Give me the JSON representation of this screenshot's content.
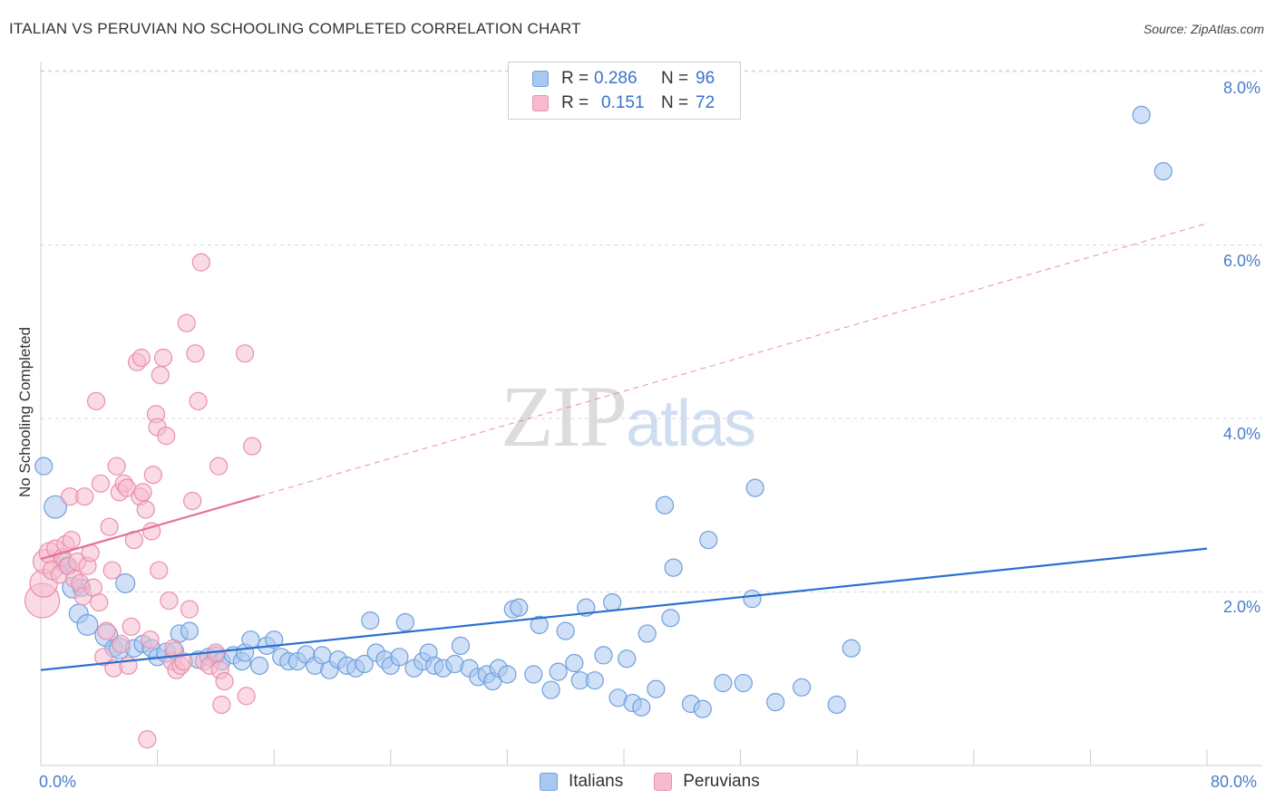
{
  "title": "ITALIAN VS PERUVIAN NO SCHOOLING COMPLETED CORRELATION CHART",
  "source": "Source: ZipAtlas.com",
  "watermark": {
    "zip": "ZIP",
    "atlas": "atlas"
  },
  "legend_top": {
    "italians": {
      "r_key": "R =",
      "r_val": "0.286",
      "n_key": "N =",
      "n_val": "96"
    },
    "peruvians": {
      "r_key": "R =",
      "r_val": "0.151",
      "n_key": "N =",
      "n_val": "72"
    }
  },
  "legend_bottom": {
    "italians": "Italians",
    "peruvians": "Peruvians"
  },
  "colors": {
    "italians_fill": "#a9c8f0",
    "italians_stroke": "#6e9fdc",
    "italians_line": "#2a6fcf",
    "peruvians_fill": "#f6bccd",
    "peruvians_stroke": "#ea8fac",
    "peruvians_line": "#e5709a",
    "grid": "#d9d9d9",
    "tick_text": "#4a7cc9"
  },
  "chart_data": {
    "type": "scatter",
    "title": "ITALIAN VS PERUVIAN NO SCHOOLING COMPLETED CORRELATION CHART",
    "xlabel": "",
    "ylabel": "No Schooling Completed",
    "xlim": [
      0,
      80
    ],
    "ylim": [
      0,
      8.0
    ],
    "x_tick_labels": [
      "0.0%",
      "80.0%"
    ],
    "y_ticks": [
      2.0,
      4.0,
      6.0,
      8.0
    ],
    "y_tick_labels": [
      "2.0%",
      "4.0%",
      "6.0%",
      "8.0%"
    ],
    "grid": "horizontal dashed",
    "legend_position": "top-center",
    "series": [
      {
        "name": "Italians",
        "r": 0.286,
        "n": 96,
        "trend": {
          "x": [
            0,
            80
          ],
          "y": [
            1.1,
            2.5
          ],
          "style": "solid"
        },
        "points": [
          [
            0.2,
            3.45,
            1.0
          ],
          [
            1.0,
            2.98,
            1.3
          ],
          [
            1.5,
            2.35,
            1.1
          ],
          [
            1.8,
            2.3,
            1.0
          ],
          [
            2.2,
            2.05,
            1.2
          ],
          [
            2.8,
            2.05,
            1.0
          ],
          [
            2.6,
            1.75,
            1.1
          ],
          [
            3.2,
            1.62,
            1.2
          ],
          [
            4.5,
            1.5,
            1.3
          ],
          [
            5.0,
            1.35,
            1.0
          ],
          [
            5.4,
            1.35,
            1.2
          ],
          [
            5.8,
            2.1,
            1.1
          ],
          [
            6.4,
            1.35,
            1.0
          ],
          [
            7.0,
            1.4,
            1.0
          ],
          [
            7.6,
            1.35,
            1.0
          ],
          [
            8.0,
            1.25,
            1.0
          ],
          [
            8.6,
            1.3,
            1.1
          ],
          [
            9.2,
            1.32,
            1.0
          ],
          [
            9.5,
            1.52,
            1.0
          ],
          [
            10.2,
            1.55,
            1.0
          ],
          [
            10.8,
            1.22,
            1.0
          ],
          [
            11.5,
            1.25,
            1.0
          ],
          [
            12.0,
            1.27,
            1.0
          ],
          [
            12.4,
            1.2,
            1.0
          ],
          [
            13.2,
            1.27,
            1.0
          ],
          [
            13.8,
            1.2,
            1.0
          ],
          [
            14.0,
            1.3,
            1.0
          ],
          [
            14.4,
            1.45,
            1.0
          ],
          [
            15.0,
            1.15,
            1.0
          ],
          [
            15.5,
            1.38,
            1.0
          ],
          [
            16.0,
            1.45,
            1.0
          ],
          [
            16.5,
            1.25,
            1.0
          ],
          [
            17.0,
            1.2,
            1.0
          ],
          [
            17.6,
            1.2,
            1.0
          ],
          [
            18.2,
            1.28,
            1.0
          ],
          [
            18.8,
            1.15,
            1.0
          ],
          [
            19.3,
            1.27,
            1.0
          ],
          [
            19.8,
            1.1,
            1.0
          ],
          [
            20.4,
            1.22,
            1.0
          ],
          [
            21.0,
            1.15,
            1.0
          ],
          [
            21.6,
            1.12,
            1.0
          ],
          [
            22.2,
            1.17,
            1.0
          ],
          [
            22.6,
            1.67,
            1.0
          ],
          [
            23.0,
            1.3,
            1.0
          ],
          [
            23.6,
            1.22,
            1.0
          ],
          [
            24.0,
            1.15,
            1.0
          ],
          [
            24.6,
            1.25,
            1.0
          ],
          [
            25.0,
            1.65,
            1.0
          ],
          [
            25.6,
            1.12,
            1.0
          ],
          [
            26.2,
            1.2,
            1.0
          ],
          [
            26.6,
            1.3,
            1.0
          ],
          [
            27.0,
            1.15,
            1.0
          ],
          [
            27.6,
            1.12,
            1.0
          ],
          [
            28.4,
            1.17,
            1.0
          ],
          [
            28.8,
            1.38,
            1.0
          ],
          [
            29.4,
            1.12,
            1.0
          ],
          [
            30.0,
            1.02,
            1.0
          ],
          [
            30.6,
            1.05,
            1.0
          ],
          [
            31.0,
            0.97,
            1.0
          ],
          [
            31.4,
            1.12,
            1.0
          ],
          [
            32.0,
            1.05,
            1.0
          ],
          [
            32.4,
            1.8,
            1.0
          ],
          [
            32.8,
            1.82,
            1.0
          ],
          [
            33.8,
            1.05,
            1.0
          ],
          [
            34.2,
            1.62,
            1.0
          ],
          [
            35.0,
            0.87,
            1.0
          ],
          [
            35.5,
            1.08,
            1.0
          ],
          [
            36.0,
            1.55,
            1.0
          ],
          [
            36.6,
            1.18,
            1.0
          ],
          [
            37.0,
            0.98,
            1.0
          ],
          [
            37.4,
            1.82,
            1.0
          ],
          [
            38.0,
            0.98,
            1.0
          ],
          [
            38.6,
            1.27,
            1.0
          ],
          [
            39.2,
            1.88,
            1.0
          ],
          [
            39.6,
            0.78,
            1.0
          ],
          [
            40.2,
            1.23,
            1.0
          ],
          [
            40.6,
            0.72,
            1.0
          ],
          [
            41.2,
            0.67,
            1.0
          ],
          [
            41.6,
            1.52,
            1.0
          ],
          [
            42.2,
            0.88,
            1.0
          ],
          [
            42.8,
            3.0,
            1.0
          ],
          [
            43.2,
            1.7,
            1.0
          ],
          [
            43.4,
            2.28,
            1.0
          ],
          [
            44.6,
            0.71,
            1.0
          ],
          [
            45.4,
            0.65,
            1.0
          ],
          [
            45.8,
            2.6,
            1.0
          ],
          [
            46.8,
            0.95,
            1.0
          ],
          [
            48.2,
            0.95,
            1.0
          ],
          [
            48.8,
            1.92,
            1.0
          ],
          [
            49.0,
            3.2,
            1.0
          ],
          [
            50.4,
            0.73,
            1.0
          ],
          [
            52.2,
            0.9,
            1.0
          ],
          [
            54.6,
            0.7,
            1.0
          ],
          [
            55.6,
            1.35,
            1.0
          ],
          [
            75.5,
            7.5,
            1.0
          ],
          [
            77.0,
            6.85,
            1.0
          ]
        ]
      },
      {
        "name": "Peruvians",
        "r": 0.151,
        "n": 72,
        "trend": {
          "x": [
            0,
            80
          ],
          "y": [
            2.38,
            6.25
          ],
          "style": "solid to x=15, dashed beyond"
        },
        "points": [
          [
            0.1,
            1.9,
            2.0
          ],
          [
            0.2,
            2.1,
            1.6
          ],
          [
            0.3,
            2.35,
            1.4
          ],
          [
            0.6,
            2.45,
            1.2
          ],
          [
            0.8,
            2.25,
            1.1
          ],
          [
            1.0,
            2.5,
            1.0
          ],
          [
            1.3,
            2.2,
            1.0
          ],
          [
            1.5,
            2.4,
            1.0
          ],
          [
            1.7,
            2.55,
            1.0
          ],
          [
            1.9,
            2.3,
            1.0
          ],
          [
            2.0,
            3.1,
            1.0
          ],
          [
            2.1,
            2.6,
            1.0
          ],
          [
            2.3,
            2.15,
            1.0
          ],
          [
            2.5,
            2.35,
            1.0
          ],
          [
            2.7,
            2.1,
            1.0
          ],
          [
            2.9,
            1.95,
            1.0
          ],
          [
            3.0,
            3.1,
            1.0
          ],
          [
            3.2,
            2.3,
            1.0
          ],
          [
            3.4,
            2.45,
            1.0
          ],
          [
            3.6,
            2.05,
            1.0
          ],
          [
            3.8,
            4.2,
            1.0
          ],
          [
            4.0,
            1.88,
            1.0
          ],
          [
            4.1,
            3.25,
            1.0
          ],
          [
            4.3,
            1.25,
            1.0
          ],
          [
            4.5,
            1.55,
            1.0
          ],
          [
            4.7,
            2.75,
            1.0
          ],
          [
            4.9,
            2.25,
            1.0
          ],
          [
            5.0,
            1.12,
            1.0
          ],
          [
            5.2,
            3.45,
            1.0
          ],
          [
            5.4,
            3.15,
            1.0
          ],
          [
            5.5,
            1.4,
            1.0
          ],
          [
            5.7,
            3.25,
            1.0
          ],
          [
            5.9,
            3.2,
            1.0
          ],
          [
            6.0,
            1.15,
            1.0
          ],
          [
            6.2,
            1.6,
            1.0
          ],
          [
            6.4,
            2.6,
            1.0
          ],
          [
            6.6,
            4.65,
            1.0
          ],
          [
            6.8,
            3.1,
            1.0
          ],
          [
            6.9,
            4.7,
            1.0
          ],
          [
            7.0,
            3.15,
            1.0
          ],
          [
            7.2,
            2.95,
            1.0
          ],
          [
            7.3,
            0.3,
            1.0
          ],
          [
            7.5,
            1.45,
            1.0
          ],
          [
            7.6,
            2.7,
            1.0
          ],
          [
            7.7,
            3.35,
            1.0
          ],
          [
            7.9,
            4.05,
            1.0
          ],
          [
            8.0,
            3.9,
            1.0
          ],
          [
            8.1,
            2.25,
            1.0
          ],
          [
            8.2,
            4.5,
            1.0
          ],
          [
            8.4,
            4.7,
            1.0
          ],
          [
            8.6,
            3.8,
            1.0
          ],
          [
            8.8,
            1.9,
            1.0
          ],
          [
            9.0,
            1.2,
            1.0
          ],
          [
            9.1,
            1.35,
            1.0
          ],
          [
            9.3,
            1.1,
            1.0
          ],
          [
            9.6,
            1.15,
            1.0
          ],
          [
            9.8,
            1.2,
            1.0
          ],
          [
            10.0,
            5.1,
            1.0
          ],
          [
            10.2,
            1.8,
            1.0
          ],
          [
            10.4,
            3.05,
            1.0
          ],
          [
            10.6,
            4.75,
            1.0
          ],
          [
            10.8,
            4.2,
            1.0
          ],
          [
            11.0,
            5.8,
            1.0
          ],
          [
            11.2,
            1.2,
            1.0
          ],
          [
            11.6,
            1.15,
            1.0
          ],
          [
            12.0,
            1.3,
            1.0
          ],
          [
            12.2,
            3.45,
            1.0
          ],
          [
            12.3,
            1.1,
            1.0
          ],
          [
            12.4,
            0.7,
            1.0
          ],
          [
            12.6,
            0.97,
            1.0
          ],
          [
            14.0,
            4.75,
            1.0
          ],
          [
            14.1,
            0.8,
            1.0
          ],
          [
            14.5,
            3.68,
            1.0
          ]
        ]
      }
    ]
  }
}
